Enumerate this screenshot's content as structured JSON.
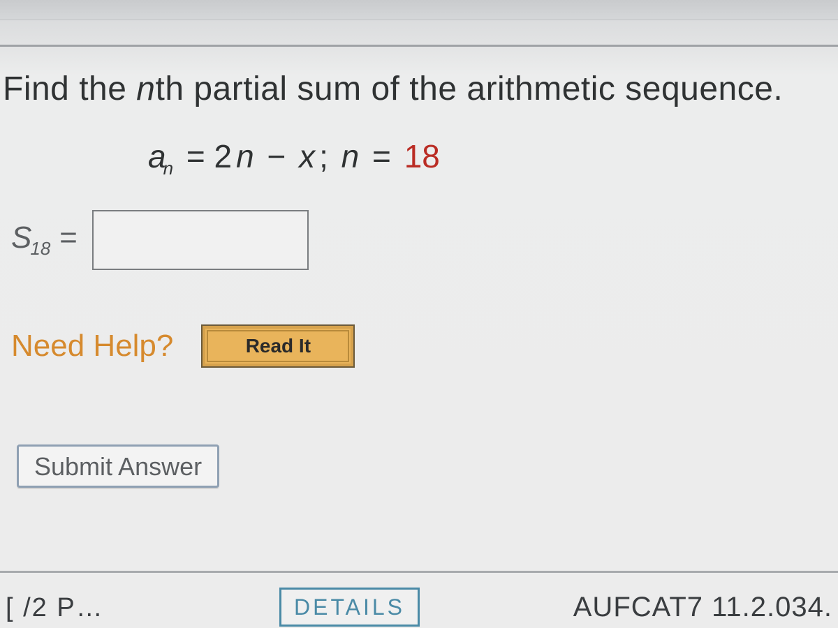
{
  "question": {
    "prefix": "Find the ",
    "var": "n",
    "suffix": "th partial sum of the arithmetic sequence."
  },
  "formula": {
    "a": "a",
    "sub": "n",
    "eq": " = 2",
    "n2": "n",
    "minus": " − ",
    "x": "x",
    "semi": "; ",
    "n3": "n",
    "eq2": " = ",
    "val": "18"
  },
  "answer": {
    "S": "S",
    "sub": "18",
    "eq": " =",
    "value": ""
  },
  "help": {
    "label": "Need Help?",
    "read_it": "Read It"
  },
  "submit": {
    "label": "Submit Answer"
  },
  "footer": {
    "details": "DETAILS",
    "code": "AUFCAT7 11.2.034.",
    "points_frag": "[ /2 P…"
  },
  "colors": {
    "accent_orange": "#d68a2e",
    "button_bg": "#e9b45b",
    "value_red": "#ba2c24",
    "border_blue": "#4a8aa6"
  }
}
